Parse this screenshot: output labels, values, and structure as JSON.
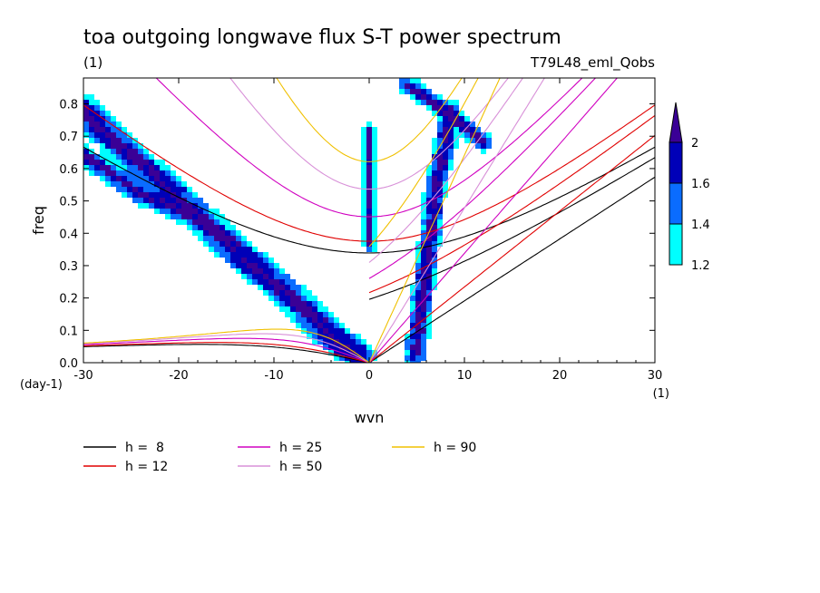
{
  "title": "toa outgoing longwave flux S-T power spectrum",
  "subtitle_left": "(1)",
  "subtitle_right": "T79L48_eml_Qobs",
  "chart_data": {
    "type": "heatmap",
    "xlabel": "wvn",
    "ylabel": "freq",
    "x_unit": "(1)",
    "y_unit": "(day-1)",
    "xlim": [
      -30,
      30
    ],
    "ylim": [
      0,
      0.88
    ],
    "x_ticks": [
      "-30",
      "-20",
      "-10",
      "0",
      "10",
      "20",
      "30"
    ],
    "y_ticks": [
      "0.0",
      "0.1",
      "0.2",
      "0.3",
      "0.4",
      "0.5",
      "0.6",
      "0.7",
      "0.8"
    ],
    "colorbar": {
      "levels": [
        "1.2",
        "1.4",
        "1.6",
        "2"
      ],
      "colors": [
        "#00ffff",
        "#0a6cff",
        "#0000b8",
        "#3a0096"
      ]
    },
    "dispersion_curves": [
      {
        "label": "h =  8",
        "h": 8,
        "color": "#000000"
      },
      {
        "label": "h = 12",
        "h": 12,
        "color": "#e00000"
      },
      {
        "label": "h = 25",
        "h": 25,
        "color": "#d000c0"
      },
      {
        "label": "h = 50",
        "h": 50,
        "color": "#d890d8"
      },
      {
        "label": "h = 90",
        "h": 90,
        "color": "#f0c000"
      }
    ],
    "signal_bands": [
      {
        "name": "rossby-band",
        "points": [
          [
            -30,
            0.78
          ],
          [
            -28,
            0.72
          ],
          [
            -25,
            0.64
          ],
          [
            -22,
            0.56
          ],
          [
            -19,
            0.48
          ],
          [
            -16,
            0.4
          ],
          [
            -13,
            0.32
          ],
          [
            -10,
            0.25
          ],
          [
            -7,
            0.17
          ],
          [
            -5,
            0.11
          ],
          [
            -3,
            0.06
          ],
          [
            -1,
            0.02
          ]
        ],
        "width": 1.6
      },
      {
        "name": "rossby-band-2",
        "points": [
          [
            -30,
            0.64
          ],
          [
            -27,
            0.58
          ],
          [
            -24,
            0.52
          ],
          [
            -21,
            0.48
          ],
          [
            -18,
            0.44
          ]
        ],
        "width": 1.0
      },
      {
        "name": "kelvin-band",
        "points": [
          [
            4.8,
            0.02
          ],
          [
            5.2,
            0.1
          ],
          [
            5.6,
            0.2
          ],
          [
            6,
            0.3
          ],
          [
            6.5,
            0.4
          ],
          [
            7,
            0.55
          ],
          [
            8,
            0.68
          ],
          [
            8.5,
            0.78
          ]
        ],
        "width": 1.1
      },
      {
        "name": "zero-band",
        "points": [
          [
            0,
            0.36
          ],
          [
            0,
            0.45
          ],
          [
            0,
            0.55
          ],
          [
            0,
            0.62
          ],
          [
            0,
            0.72
          ]
        ],
        "width": 0.6
      },
      {
        "name": "top-band",
        "points": [
          [
            4,
            0.86
          ],
          [
            6,
            0.82
          ],
          [
            8,
            0.78
          ],
          [
            10,
            0.73
          ],
          [
            12,
            0.68
          ]
        ],
        "width": 0.9
      }
    ]
  }
}
